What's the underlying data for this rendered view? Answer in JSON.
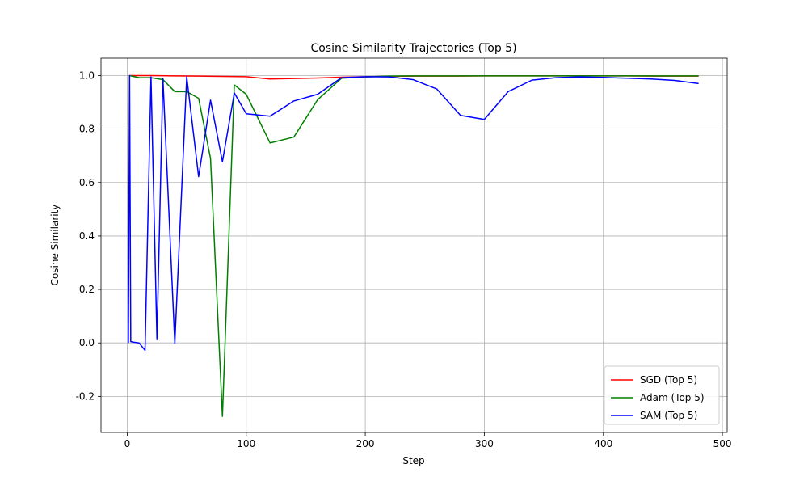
{
  "chart_data": {
    "type": "line",
    "title": "Cosine Similarity Trajectories (Top 5)",
    "xlabel": "Step",
    "ylabel": "Cosine Similarity",
    "xlim": [
      -22,
      504
    ],
    "ylim": [
      -0.335,
      1.065
    ],
    "xticks": [
      0,
      100,
      200,
      300,
      400,
      500
    ],
    "yticks": [
      -0.2,
      0.0,
      0.2,
      0.4,
      0.6,
      0.8,
      1.0
    ],
    "grid": true,
    "legend_position": "lower-right",
    "series": [
      {
        "name": "SGD (Top 5)",
        "color": "#ff0000",
        "x": [
          2,
          10,
          20,
          40,
          60,
          80,
          100,
          120,
          140,
          160,
          180,
          200,
          220,
          240,
          260,
          280,
          300,
          320,
          340,
          360,
          380,
          400,
          420,
          440,
          460,
          480
        ],
        "y": [
          1.0,
          1.0,
          1.0,
          0.999,
          0.998,
          0.997,
          0.996,
          0.987,
          0.989,
          0.991,
          0.994,
          0.996,
          0.997,
          0.998,
          0.998,
          0.998,
          0.999,
          0.999,
          0.999,
          0.999,
          0.999,
          0.999,
          0.999,
          0.998,
          0.998,
          0.998
        ]
      },
      {
        "name": "Adam (Top 5)",
        "color": "#008000",
        "x": [
          2,
          10,
          20,
          30,
          40,
          50,
          60,
          70,
          80,
          90,
          100,
          120,
          140,
          160,
          180,
          200,
          220,
          240,
          260,
          280,
          300,
          320,
          340,
          360,
          380,
          400,
          420,
          440,
          460,
          480
        ],
        "y": [
          1.0,
          0.992,
          0.992,
          0.985,
          0.94,
          0.94,
          0.915,
          0.69,
          -0.275,
          0.965,
          0.93,
          0.748,
          0.77,
          0.91,
          0.99,
          0.995,
          0.998,
          0.999,
          0.999,
          0.999,
          0.999,
          0.999,
          0.999,
          0.999,
          0.999,
          0.999,
          0.999,
          0.999,
          0.999,
          0.999
        ]
      },
      {
        "name": "SAM (Top 5)",
        "color": "#0000ff",
        "x": [
          1,
          2,
          3,
          5,
          10,
          15,
          20,
          25,
          30,
          40,
          50,
          60,
          70,
          80,
          90,
          100,
          120,
          140,
          160,
          180,
          200,
          220,
          240,
          260,
          280,
          300,
          320,
          340,
          360,
          380,
          400,
          420,
          440,
          460,
          480
        ],
        "y": [
          0.0,
          1.0,
          0.005,
          0.003,
          0.0,
          -0.028,
          0.995,
          0.012,
          0.99,
          -0.002,
          0.995,
          0.622,
          0.908,
          0.678,
          0.935,
          0.857,
          0.848,
          0.905,
          0.93,
          0.992,
          0.996,
          0.995,
          0.985,
          0.95,
          0.851,
          0.836,
          0.94,
          0.983,
          0.992,
          0.995,
          0.993,
          0.99,
          0.987,
          0.982,
          0.97
        ]
      }
    ]
  }
}
